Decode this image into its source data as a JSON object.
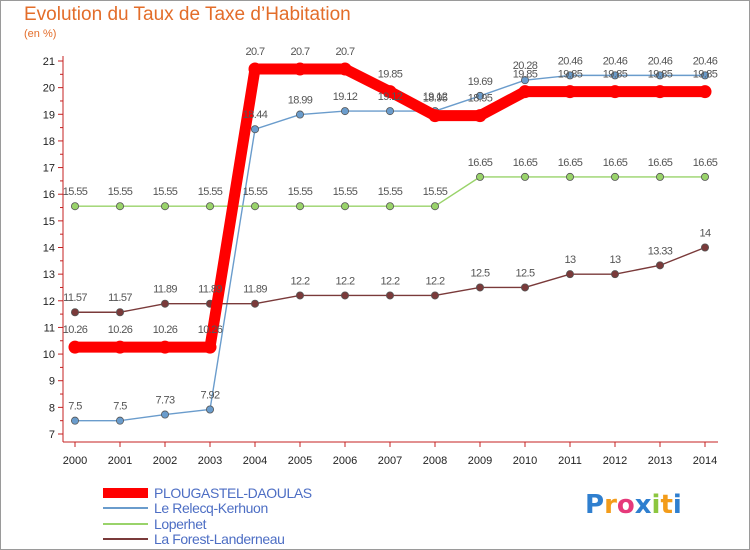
{
  "chart_data": {
    "type": "line",
    "title": "Evolution du Taux de Taxe d’Habitation",
    "unit_label": "(en %)",
    "x": [
      "2000",
      "2001",
      "2002",
      "2003",
      "2004",
      "2005",
      "2006",
      "2007",
      "2008",
      "2009",
      "2010",
      "2011",
      "2012",
      "2013",
      "2014"
    ],
    "ylim": [
      7,
      21
    ],
    "yticks": [
      7,
      8,
      9,
      10,
      11,
      12,
      13,
      14,
      15,
      16,
      17,
      18,
      19,
      20,
      21
    ],
    "grid": false,
    "legend_position": "bottom-left",
    "series": [
      {
        "name": "PLOUGASTEL-DAOULAS",
        "color": "#ff0000",
        "values": [
          10.26,
          10.26,
          10.26,
          10.26,
          20.7,
          20.7,
          20.7,
          19.85,
          18.95,
          18.95,
          19.85,
          19.85,
          19.85,
          19.85,
          19.85
        ],
        "labels": [
          "10.26",
          "10.26",
          "10.26",
          "10.26",
          "20.7",
          "20.7",
          "20.7",
          "19.85",
          "18.95",
          "18.95",
          "19.85",
          "19.85",
          "19.85",
          "19.85",
          "19.85"
        ]
      },
      {
        "name": "Le Relecq-Kerhuon",
        "color": "#6a9ccc",
        "values": [
          7.5,
          7.5,
          7.73,
          7.92,
          18.44,
          18.99,
          19.12,
          19.12,
          19.12,
          19.69,
          20.28,
          20.46,
          20.46,
          20.46,
          20.46
        ],
        "labels": [
          "7.5",
          "7.5",
          "7.73",
          "7.92",
          "18.44",
          "18.99",
          "19.12",
          "19.12",
          "19.12",
          "19.69",
          "20.28",
          "20.46",
          "20.46",
          "20.46",
          "20.46"
        ]
      },
      {
        "name": "Loperhet",
        "color": "#99d36a",
        "values": [
          15.55,
          15.55,
          15.55,
          15.55,
          15.55,
          15.55,
          15.55,
          15.55,
          15.55,
          16.65,
          16.65,
          16.65,
          16.65,
          16.65,
          16.65
        ],
        "labels": [
          "15.55",
          "15.55",
          "15.55",
          "15.55",
          "15.55",
          "15.55",
          "15.55",
          "15.55",
          "15.55",
          "16.65",
          "16.65",
          "16.65",
          "16.65",
          "16.65",
          "16.65"
        ]
      },
      {
        "name": "La Forest-Landerneau",
        "color": "#7a3a3a",
        "values": [
          11.57,
          11.57,
          11.89,
          11.89,
          11.89,
          12.2,
          12.2,
          12.2,
          12.2,
          12.5,
          12.5,
          13,
          13,
          13.33,
          14
        ],
        "labels": [
          "11.57",
          "11.57",
          "11.89",
          "11.89",
          "11.89",
          "12.2",
          "12.2",
          "12.2",
          "12.2",
          "12.5",
          "12.5",
          "13",
          "13",
          "13.33",
          "14"
        ]
      }
    ]
  },
  "logo": {
    "letters": [
      "P",
      "r",
      "o",
      "x",
      "i",
      "t",
      "i"
    ],
    "colors": [
      "#2f7fcf",
      "#f39c1a",
      "#e6397a",
      "#2f7fcf",
      "#8cc63f",
      "#f39c1a",
      "#2f7fcf"
    ]
  }
}
